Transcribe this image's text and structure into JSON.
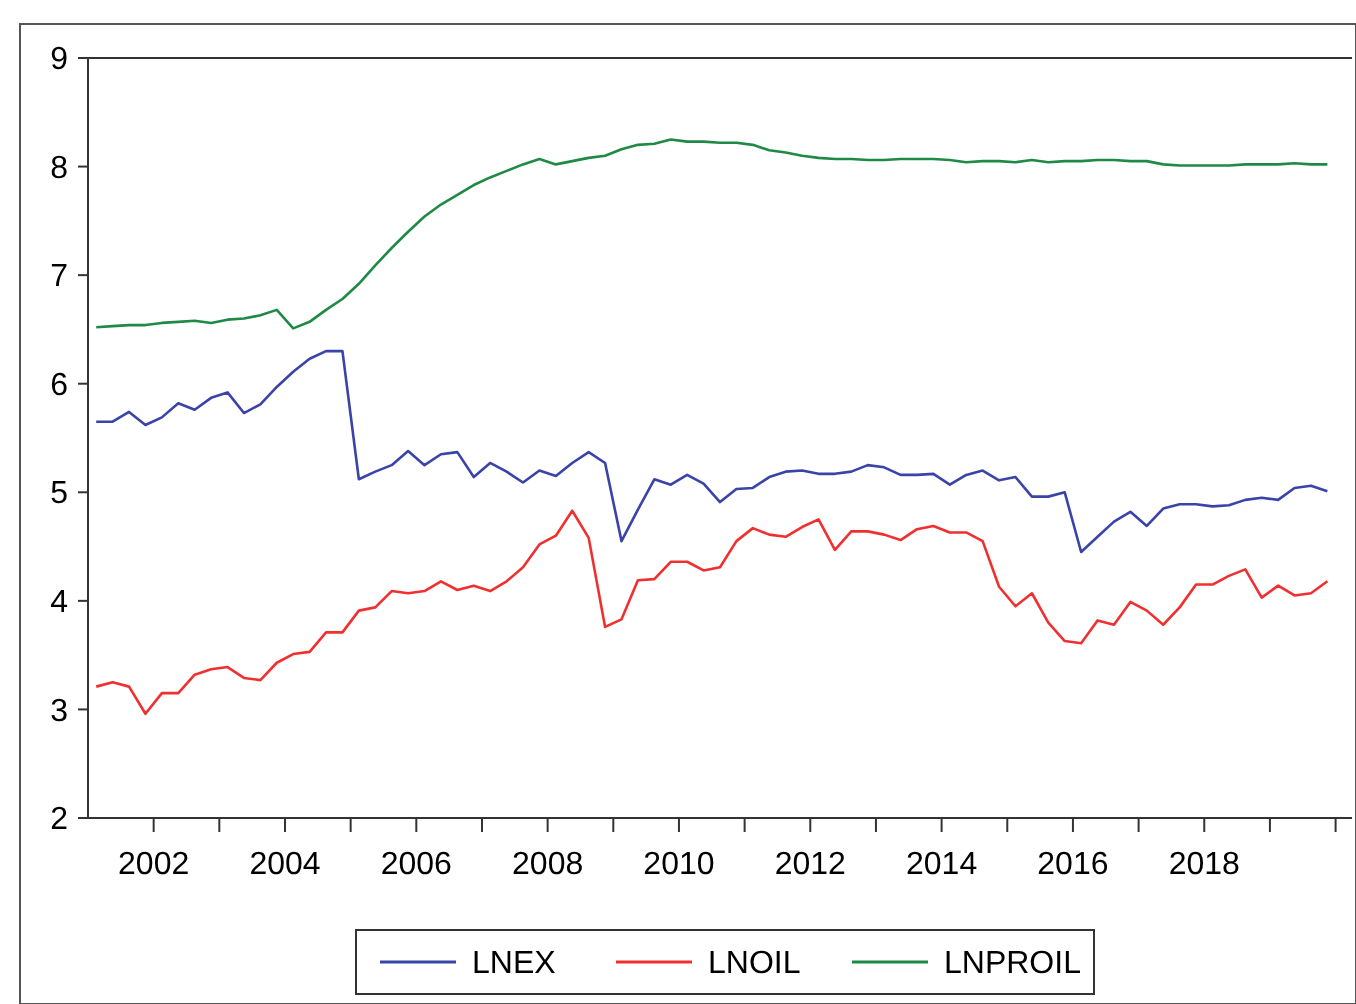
{
  "chart_data": {
    "type": "line",
    "x": [
      2001.125,
      2001.375,
      2001.625,
      2001.875,
      2002.125,
      2002.375,
      2002.625,
      2002.875,
      2003.125,
      2003.375,
      2003.625,
      2003.875,
      2004.125,
      2004.375,
      2004.625,
      2004.875,
      2005.125,
      2005.375,
      2005.625,
      2005.875,
      2006.125,
      2006.375,
      2006.625,
      2006.875,
      2007.125,
      2007.375,
      2007.625,
      2007.875,
      2008.125,
      2008.375,
      2008.625,
      2008.875,
      2009.125,
      2009.375,
      2009.625,
      2009.875,
      2010.125,
      2010.375,
      2010.625,
      2010.875,
      2011.125,
      2011.375,
      2011.625,
      2011.875,
      2012.125,
      2012.375,
      2012.625,
      2012.875,
      2013.125,
      2013.375,
      2013.625,
      2013.875,
      2014.125,
      2014.375,
      2014.625,
      2014.875,
      2015.125,
      2015.375,
      2015.625,
      2015.875,
      2016.125,
      2016.375,
      2016.625,
      2016.875,
      2017.125,
      2017.375,
      2017.625,
      2017.875,
      2018.125,
      2018.375,
      2018.625,
      2018.875,
      2019.125,
      2019.375,
      2019.625,
      2019.875
    ],
    "series": [
      {
        "name": "LNEX",
        "color": "#3a44a8",
        "values": [
          5.65,
          5.65,
          5.74,
          5.62,
          5.69,
          5.82,
          5.76,
          5.87,
          5.92,
          5.73,
          5.81,
          5.97,
          6.11,
          6.23,
          6.3,
          6.3,
          5.12,
          5.19,
          5.25,
          5.38,
          5.25,
          5.35,
          5.37,
          5.14,
          5.27,
          5.19,
          5.09,
          5.2,
          5.15,
          5.27,
          5.37,
          5.27,
          4.55,
          4.84,
          5.12,
          5.07,
          5.16,
          5.08,
          4.91,
          5.03,
          5.04,
          5.14,
          5.19,
          5.2,
          5.17,
          5.17,
          5.19,
          5.25,
          5.23,
          5.16,
          5.16,
          5.17,
          5.07,
          5.16,
          5.2,
          5.11,
          5.14,
          4.96,
          4.96,
          5.0,
          4.45,
          4.59,
          4.73,
          4.82,
          4.69,
          4.85,
          4.89,
          4.89,
          4.87,
          4.88,
          4.93,
          4.95,
          4.93,
          5.04,
          5.06,
          5.01
        ]
      },
      {
        "name": "LNOIL",
        "color": "#f03030",
        "values": [
          3.21,
          3.25,
          3.21,
          2.96,
          3.15,
          3.15,
          3.32,
          3.37,
          3.39,
          3.29,
          3.27,
          3.43,
          3.51,
          3.53,
          3.71,
          3.71,
          3.91,
          3.94,
          4.09,
          4.07,
          4.09,
          4.18,
          4.1,
          4.14,
          4.09,
          4.18,
          4.31,
          4.52,
          4.6,
          4.83,
          4.58,
          3.76,
          3.83,
          4.19,
          4.2,
          4.36,
          4.36,
          4.28,
          4.31,
          4.55,
          4.67,
          4.61,
          4.59,
          4.68,
          4.75,
          4.47,
          4.64,
          4.64,
          4.61,
          4.56,
          4.66,
          4.69,
          4.63,
          4.63,
          4.55,
          4.13,
          3.95,
          4.07,
          3.8,
          3.63,
          3.61,
          3.82,
          3.78,
          3.99,
          3.91,
          3.78,
          3.94,
          4.15,
          4.15,
          4.23,
          4.29,
          4.03,
          4.14,
          4.05,
          4.07,
          4.18
        ]
      },
      {
        "name": "LNPROIL",
        "color": "#1e8a46",
        "values": [
          6.52,
          6.53,
          6.54,
          6.54,
          6.56,
          6.57,
          6.58,
          6.56,
          6.59,
          6.6,
          6.63,
          6.68,
          6.51,
          6.57,
          6.68,
          6.78,
          6.92,
          7.09,
          7.25,
          7.4,
          7.54,
          7.65,
          7.74,
          7.83,
          7.9,
          7.96,
          8.02,
          8.07,
          8.02,
          8.05,
          8.08,
          8.1,
          8.16,
          8.2,
          8.21,
          8.25,
          8.23,
          8.23,
          8.22,
          8.22,
          8.2,
          8.15,
          8.13,
          8.1,
          8.08,
          8.07,
          8.07,
          8.06,
          8.06,
          8.07,
          8.07,
          8.07,
          8.06,
          8.04,
          8.05,
          8.05,
          8.04,
          8.06,
          8.04,
          8.05,
          8.05,
          8.06,
          8.06,
          8.05,
          8.05,
          8.02,
          8.01,
          8.01,
          8.01,
          8.01,
          8.02,
          8.02,
          8.02,
          8.03,
          8.02,
          8.02
        ]
      }
    ],
    "xlim": [
      2001,
      2020.25
    ],
    "xticks": [
      2002,
      {
        "value": 2003,
        "label": null
      },
      2004,
      {
        "value": 2005,
        "label": null
      },
      2006,
      {
        "value": 2007,
        "label": null
      },
      2008,
      {
        "value": 2009,
        "label": null
      },
      2010,
      {
        "value": 2011,
        "label": null
      },
      2012,
      {
        "value": 2013,
        "label": null
      },
      2014,
      {
        "value": 2015,
        "label": null
      },
      2016,
      {
        "value": 2017,
        "label": null
      },
      2018,
      {
        "value": 2019,
        "label": null
      },
      {
        "value": 2020,
        "label": null
      }
    ],
    "ylim": [
      2,
      9
    ],
    "yticks": [
      2,
      3,
      4,
      5,
      6,
      7,
      8,
      9
    ],
    "grid": false,
    "legend": "bottom",
    "line_style": "solid"
  }
}
